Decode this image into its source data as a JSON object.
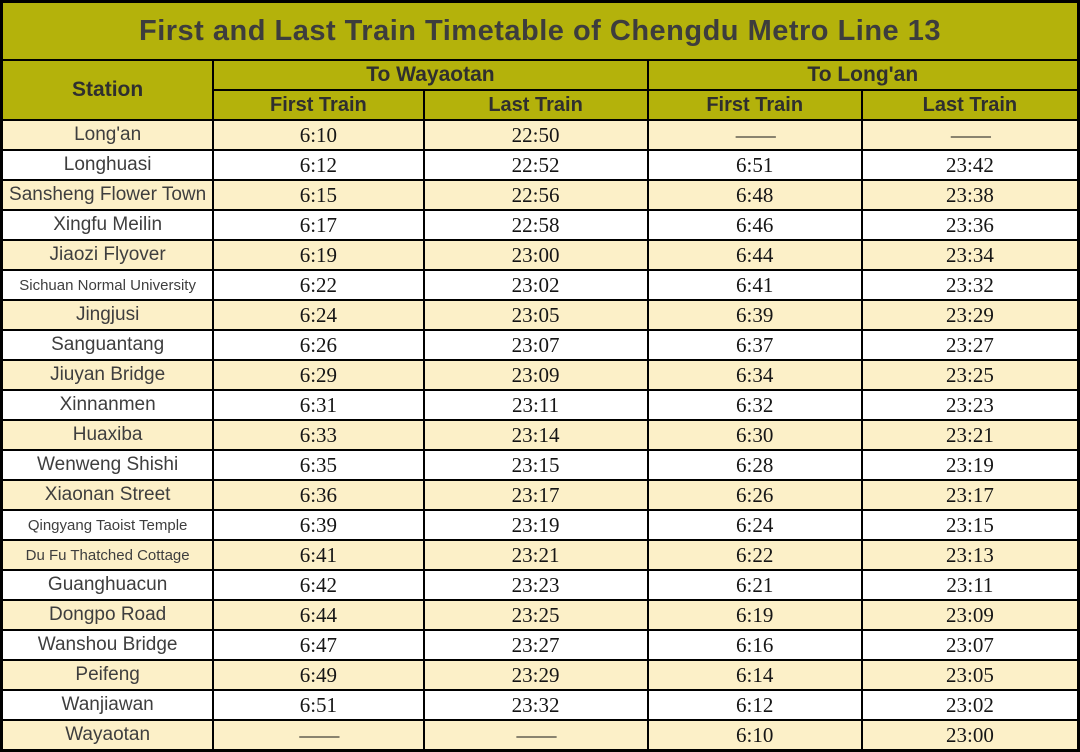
{
  "title": "First and Last Train Timetable of Chengdu Metro Line 13",
  "table": {
    "station_header": "Station",
    "direction_headers": {
      "wayaotan": "To Wayaotan",
      "longan": "To Long'an"
    },
    "sub_headers": [
      "First Train",
      "Last Train",
      "First Train",
      "Last Train"
    ],
    "no_service_symbol": "——",
    "rows": [
      {
        "station": "Long'an",
        "wayaotan_first": "6:10",
        "wayaotan_last": "22:50",
        "longan_first": "——",
        "longan_last": "——"
      },
      {
        "station": "Longhuasi",
        "wayaotan_first": "6:12",
        "wayaotan_last": "22:52",
        "longan_first": "6:51",
        "longan_last": "23:42"
      },
      {
        "station": "Sansheng Flower Town",
        "wayaotan_first": "6:15",
        "wayaotan_last": "22:56",
        "longan_first": "6:48",
        "longan_last": "23:38"
      },
      {
        "station": "Xingfu Meilin",
        "wayaotan_first": "6:17",
        "wayaotan_last": "22:58",
        "longan_first": "6:46",
        "longan_last": "23:36"
      },
      {
        "station": "Jiaozi Flyover",
        "wayaotan_first": "6:19",
        "wayaotan_last": "23:00",
        "longan_first": "6:44",
        "longan_last": "23:34"
      },
      {
        "station": "Sichuan Normal University",
        "wayaotan_first": "6:22",
        "wayaotan_last": "23:02",
        "longan_first": "6:41",
        "longan_last": "23:32"
      },
      {
        "station": "Jingjusi",
        "wayaotan_first": "6:24",
        "wayaotan_last": "23:05",
        "longan_first": "6:39",
        "longan_last": "23:29"
      },
      {
        "station": "Sanguantang",
        "wayaotan_first": "6:26",
        "wayaotan_last": "23:07",
        "longan_first": "6:37",
        "longan_last": "23:27"
      },
      {
        "station": "Jiuyan Bridge",
        "wayaotan_first": "6:29",
        "wayaotan_last": "23:09",
        "longan_first": "6:34",
        "longan_last": "23:25"
      },
      {
        "station": "Xinnanmen",
        "wayaotan_first": "6:31",
        "wayaotan_last": "23:11",
        "longan_first": "6:32",
        "longan_last": "23:23"
      },
      {
        "station": "Huaxiba",
        "wayaotan_first": "6:33",
        "wayaotan_last": "23:14",
        "longan_first": "6:30",
        "longan_last": "23:21"
      },
      {
        "station": "Wenweng Shishi",
        "wayaotan_first": "6:35",
        "wayaotan_last": "23:15",
        "longan_first": "6:28",
        "longan_last": "23:19"
      },
      {
        "station": "Xiaonan Street",
        "wayaotan_first": "6:36",
        "wayaotan_last": "23:17",
        "longan_first": "6:26",
        "longan_last": "23:17"
      },
      {
        "station": "Qingyang Taoist Temple",
        "wayaotan_first": "6:39",
        "wayaotan_last": "23:19",
        "longan_first": "6:24",
        "longan_last": "23:15"
      },
      {
        "station": "Du Fu Thatched Cottage",
        "wayaotan_first": "6:41",
        "wayaotan_last": "23:21",
        "longan_first": "6:22",
        "longan_last": "23:13"
      },
      {
        "station": "Guanghuacun",
        "wayaotan_first": "6:42",
        "wayaotan_last": "23:23",
        "longan_first": "6:21",
        "longan_last": "23:11"
      },
      {
        "station": "Dongpo Road",
        "wayaotan_first": "6:44",
        "wayaotan_last": "23:25",
        "longan_first": "6:19",
        "longan_last": "23:09"
      },
      {
        "station": "Wanshou Bridge",
        "wayaotan_first": "6:47",
        "wayaotan_last": "23:27",
        "longan_first": "6:16",
        "longan_last": "23:07"
      },
      {
        "station": "Peifeng",
        "wayaotan_first": "6:49",
        "wayaotan_last": "23:29",
        "longan_first": "6:14",
        "longan_last": "23:05"
      },
      {
        "station": "Wanjiawan",
        "wayaotan_first": "6:51",
        "wayaotan_last": "23:32",
        "longan_first": "6:12",
        "longan_last": "23:02"
      },
      {
        "station": "Wayaotan",
        "wayaotan_first": "——",
        "wayaotan_last": "——",
        "longan_first": "6:10",
        "longan_last": "23:00"
      }
    ]
  },
  "colors": {
    "header_bg": "#b4b20b",
    "row_alt_bg": "#fcf0c8",
    "row_bg": "#ffffff",
    "border": "#000000",
    "title_text": "#3d3d3d",
    "header_text": "#2f2f2f",
    "station_text": "#3e3e3e",
    "time_text": "#161616"
  }
}
